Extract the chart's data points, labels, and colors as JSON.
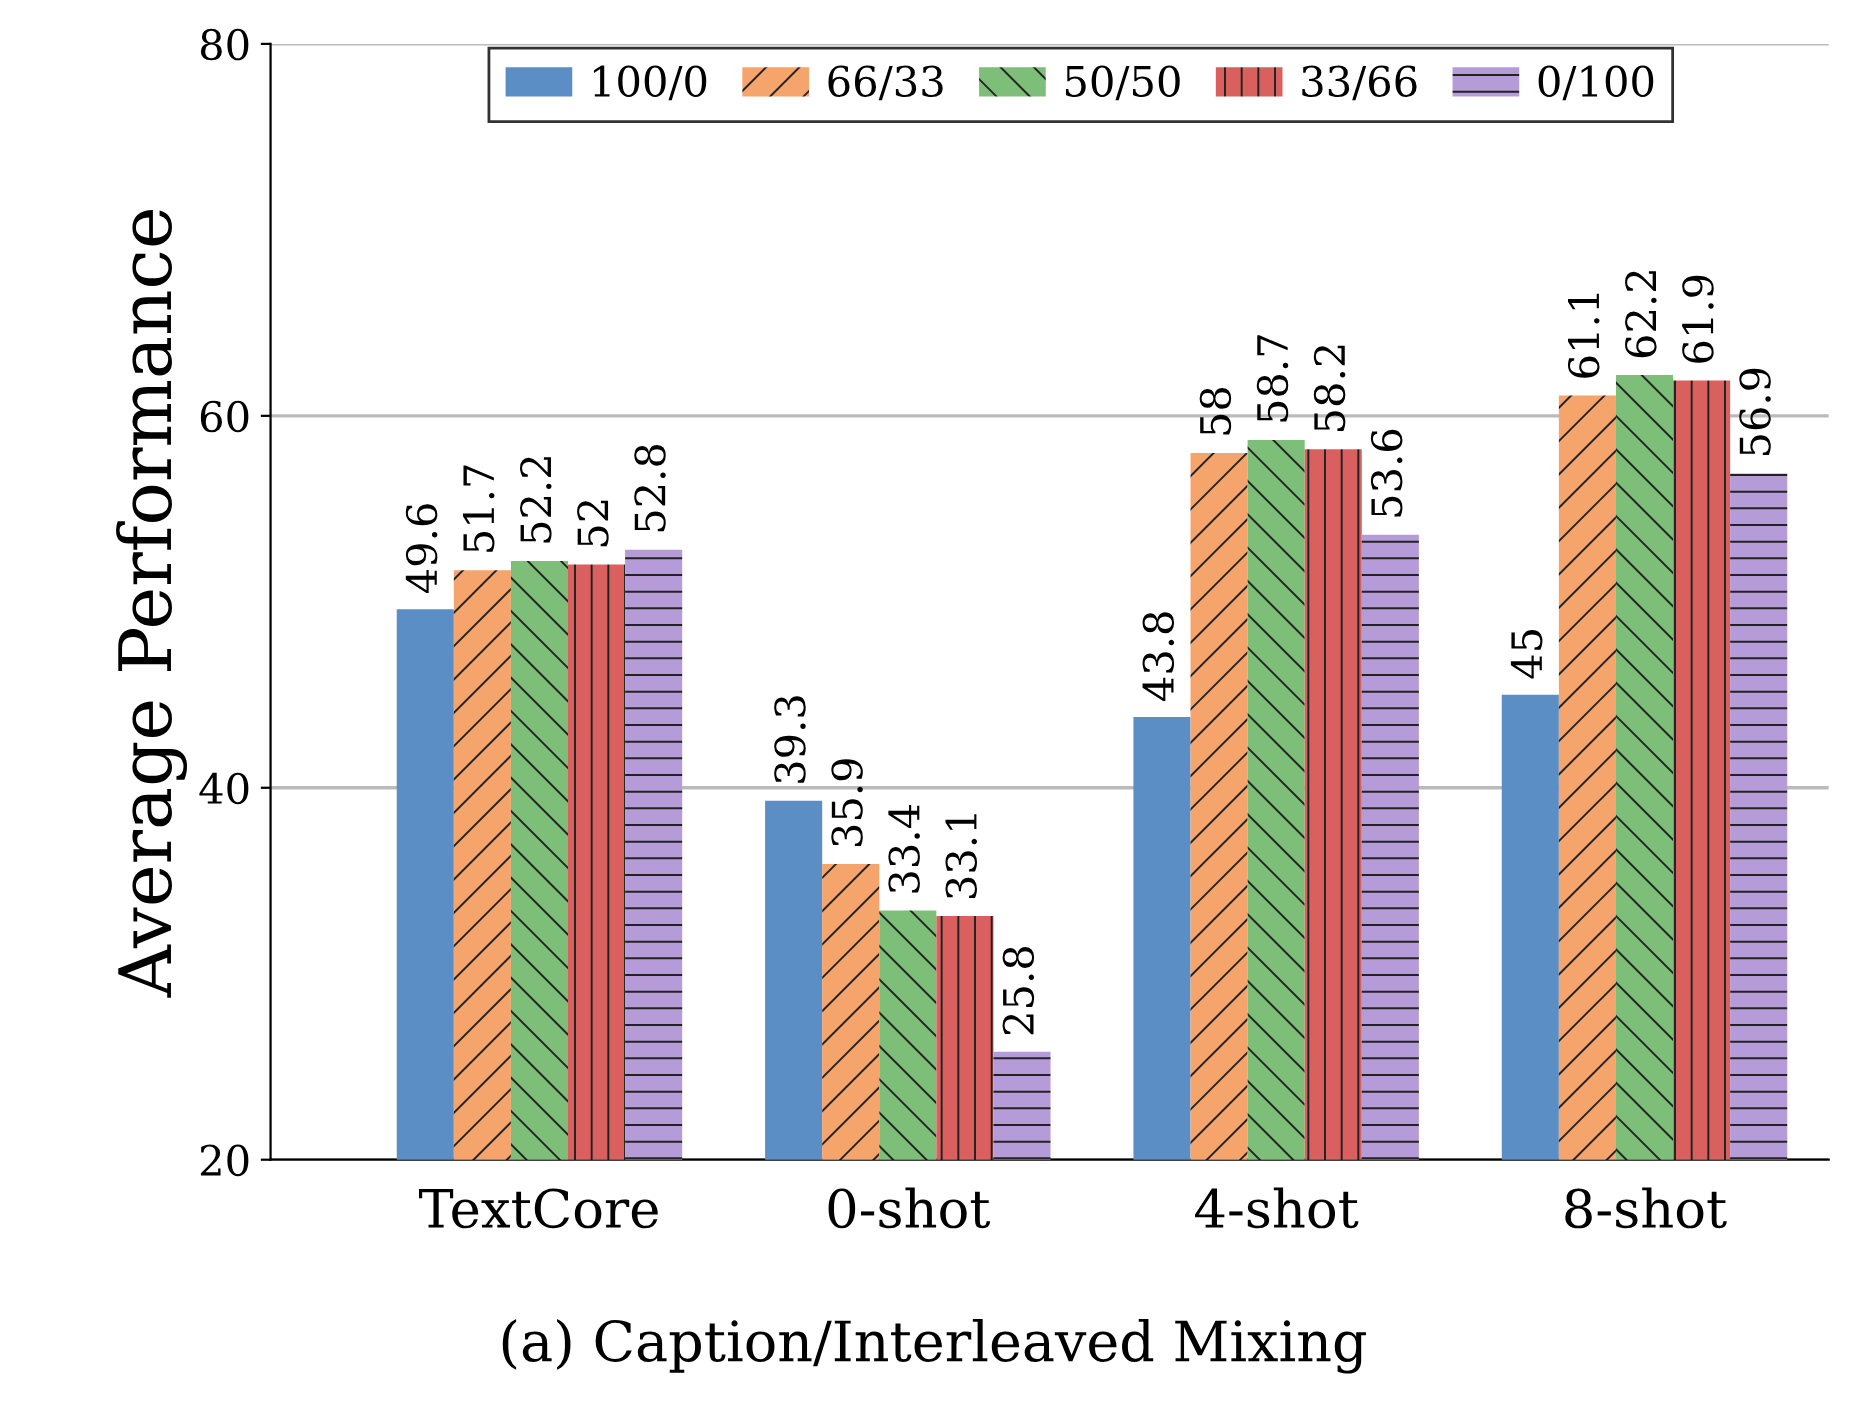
{
  "chart_data": {
    "type": "bar",
    "title": "(a) Caption/Interleaved Mixing",
    "ylabel": "Average Performance",
    "categories": [
      "TextCore",
      "0-shot",
      "4-shot",
      "8-shot"
    ],
    "series": [
      {
        "name": "100/0",
        "color": "#5b8ec4",
        "values": [
          49.6,
          39.3,
          43.8,
          45
        ]
      },
      {
        "name": "66/33",
        "color": "#f5a46b",
        "values": [
          51.7,
          35.9,
          58,
          61.1
        ]
      },
      {
        "name": "50/50",
        "color": "#7dbf78",
        "values": [
          52.2,
          33.4,
          58.7,
          62.2
        ]
      },
      {
        "name": "33/66",
        "color": "#d9605e",
        "values": [
          52,
          33.1,
          58.2,
          61.9
        ]
      },
      {
        "name": "0/100",
        "color": "#b59bd8",
        "values": [
          52.8,
          25.8,
          53.6,
          56.9
        ]
      }
    ],
    "ylim": [
      20,
      80
    ],
    "yticks": [
      20,
      40,
      60,
      80
    ],
    "grid": "y",
    "legend": "top",
    "data_labels": true
  }
}
